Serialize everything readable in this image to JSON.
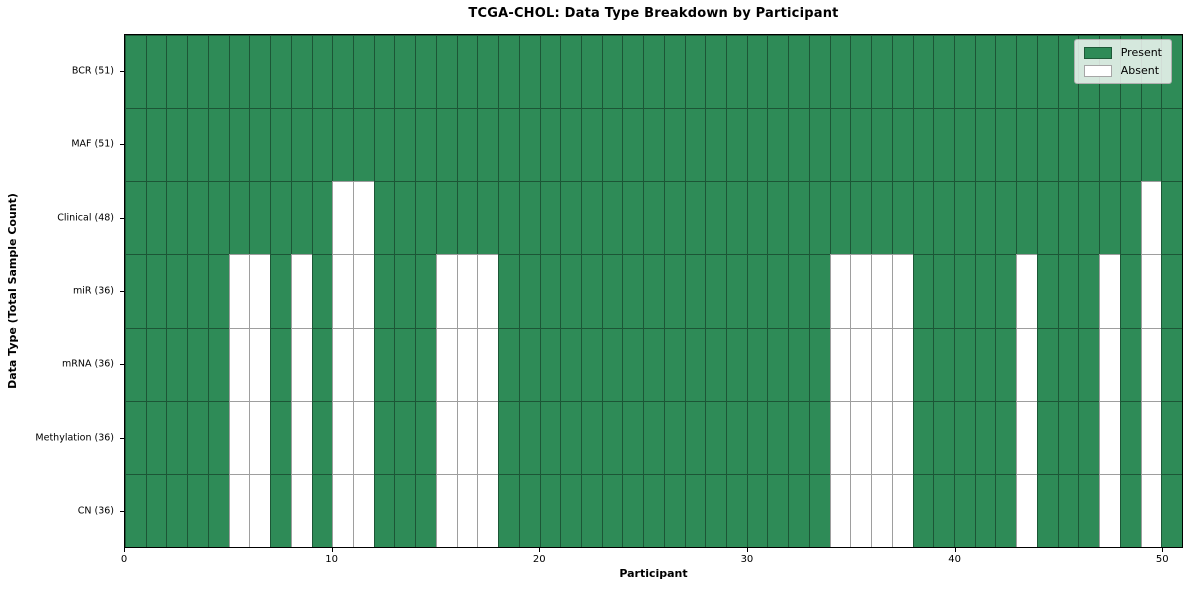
{
  "chart_data": {
    "type": "heatmap",
    "title": "TCGA-CHOL: Data Type Breakdown by Participant",
    "xlabel": "Participant",
    "ylabel": "Data Type (Total Sample Count)",
    "n_participants": 51,
    "x_axis": {
      "ticks": [
        0,
        10,
        20,
        30,
        40,
        50
      ],
      "range": [
        0,
        51
      ]
    },
    "rows": [
      {
        "label": "BCR (51)",
        "present_count": 51,
        "absent": []
      },
      {
        "label": "MAF (51)",
        "present_count": 51,
        "absent": []
      },
      {
        "label": "Clinical (48)",
        "present_count": 48,
        "absent": [
          10,
          11,
          49
        ]
      },
      {
        "label": "miR (36)",
        "present_count": 36,
        "absent": [
          5,
          6,
          8,
          10,
          11,
          15,
          16,
          17,
          34,
          35,
          36,
          37,
          43,
          47,
          49
        ]
      },
      {
        "label": "mRNA (36)",
        "present_count": 36,
        "absent": [
          5,
          6,
          8,
          10,
          11,
          15,
          16,
          17,
          34,
          35,
          36,
          37,
          43,
          47,
          49
        ]
      },
      {
        "label": "Methylation (36)",
        "present_count": 36,
        "absent": [
          5,
          6,
          8,
          10,
          11,
          15,
          16,
          17,
          34,
          35,
          36,
          37,
          43,
          47,
          49
        ]
      },
      {
        "label": "CN (36)",
        "present_count": 36,
        "absent": [
          5,
          6,
          8,
          10,
          11,
          15,
          16,
          17,
          34,
          35,
          36,
          37,
          43,
          47,
          49
        ]
      }
    ],
    "legend": [
      {
        "label": "Present",
        "color": "#2E8B57"
      },
      {
        "label": "Absent",
        "color": "#FFFFFF"
      }
    ],
    "colors": {
      "present": "#2E8B57",
      "absent": "#FFFFFF",
      "grid": "rgba(0,0,0,0.38)",
      "frame": "#000000",
      "legend_border": "#b0b0b0"
    },
    "legend_position": "upper right",
    "grid_on": true
  }
}
